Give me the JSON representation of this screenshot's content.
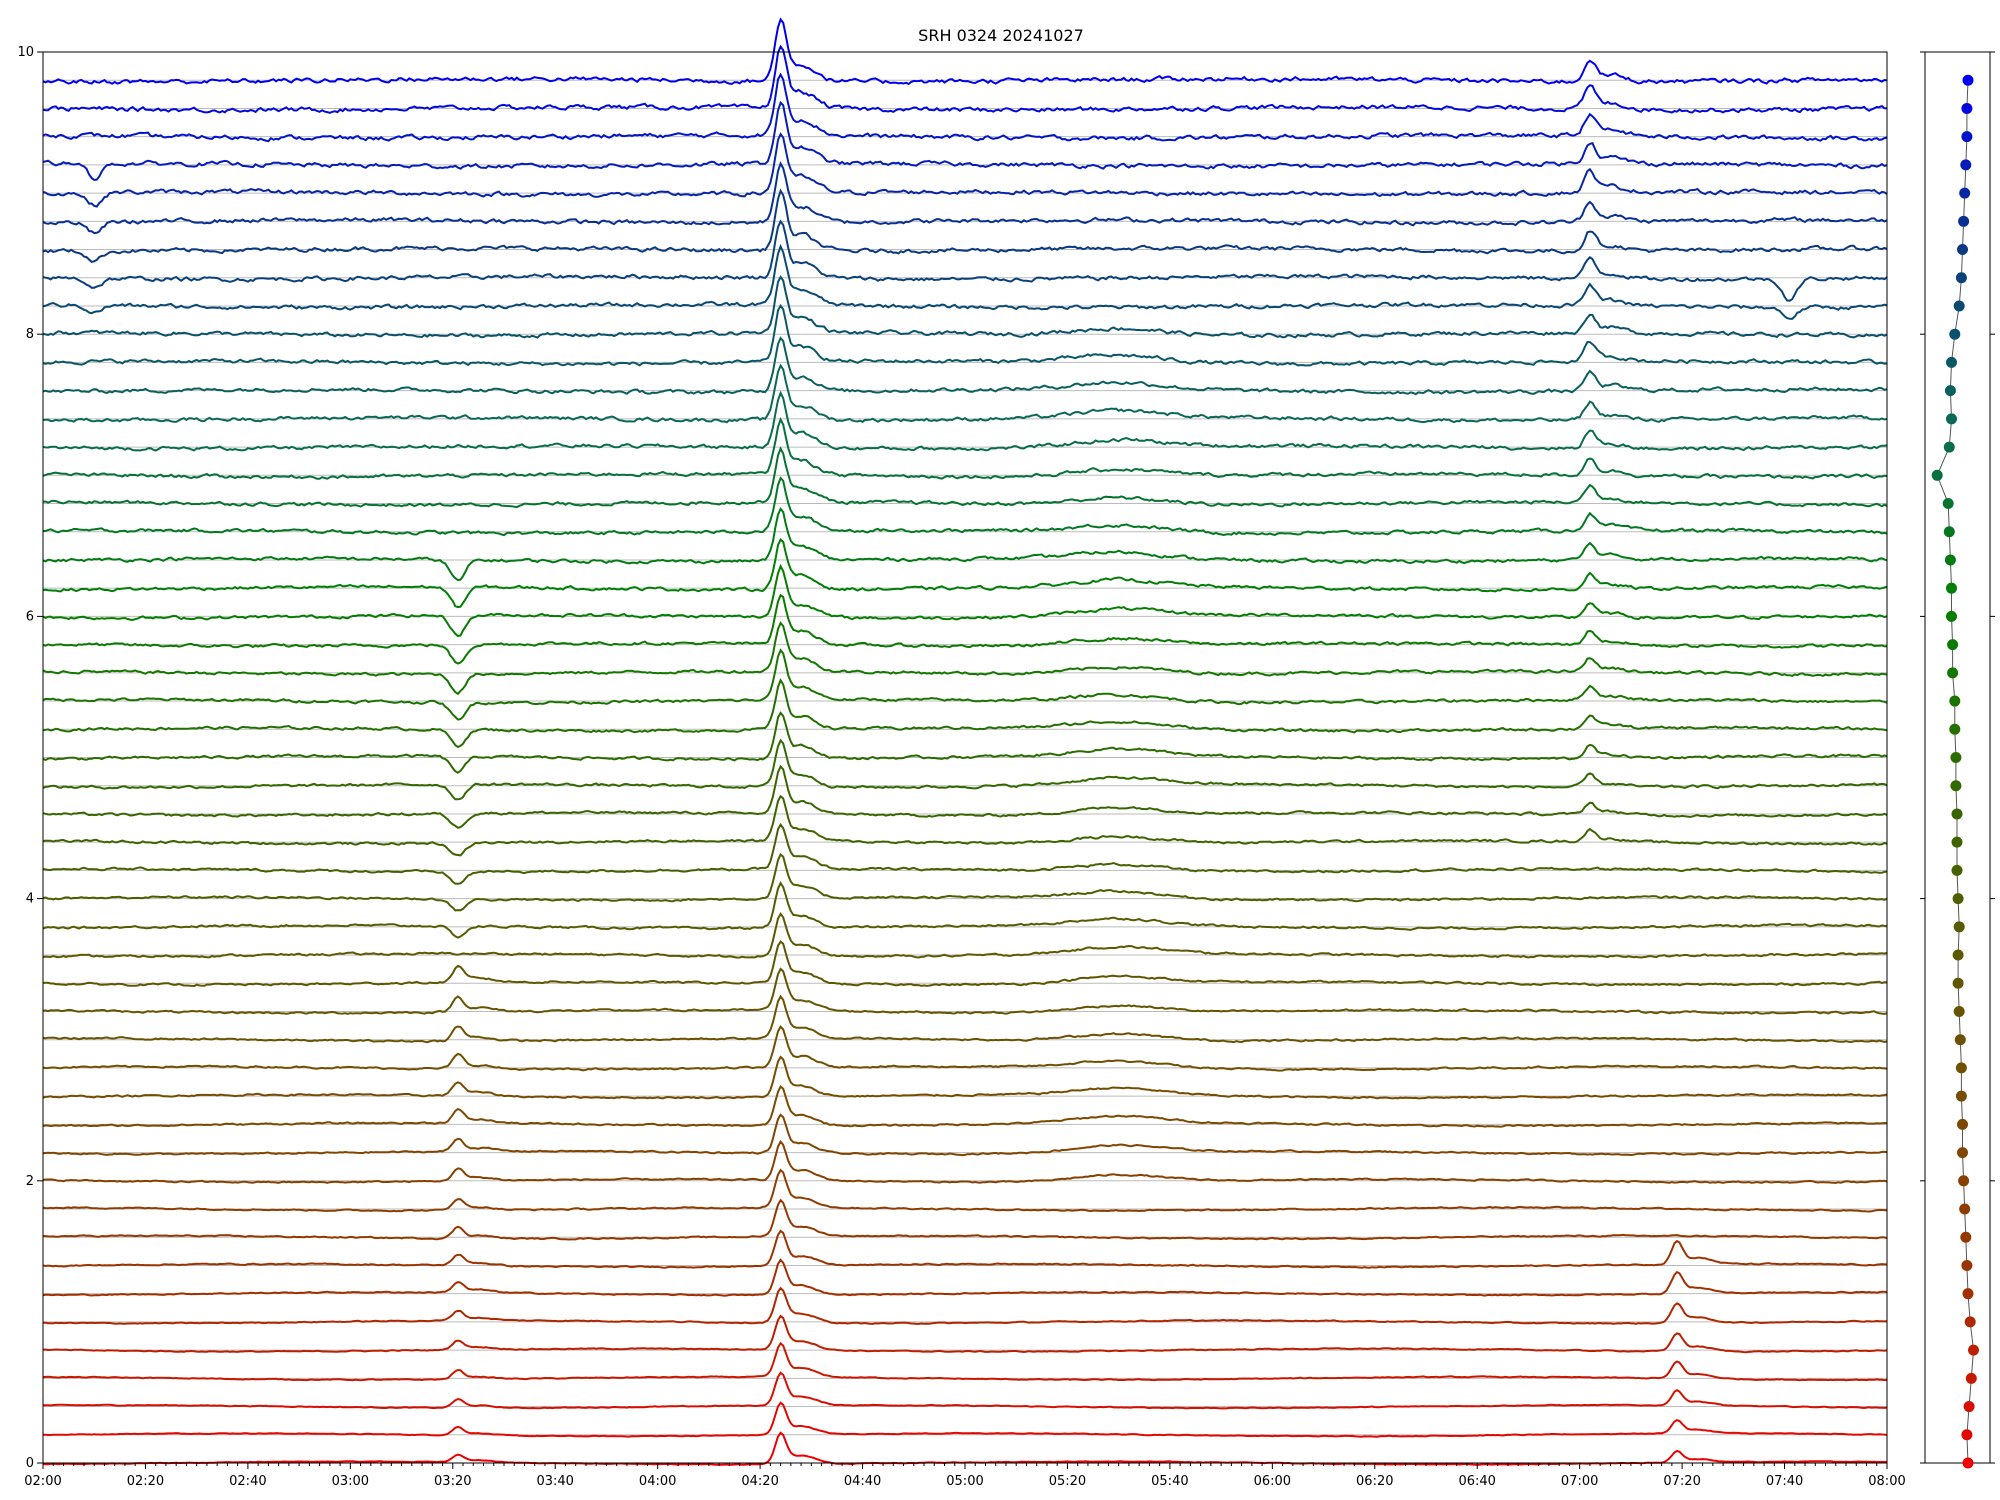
{
  "chart_data": {
    "type": "line",
    "title": "SRH 0324 20241027",
    "xlabel": "",
    "ylabel": "",
    "x_range": [
      "02:00",
      "08:00"
    ],
    "ylim": [
      0,
      10
    ],
    "x_ticks": [
      "02:00",
      "02:20",
      "02:40",
      "03:00",
      "03:20",
      "03:40",
      "04:00",
      "04:20",
      "04:40",
      "05:00",
      "05:20",
      "05:40",
      "06:00",
      "06:20",
      "06:40",
      "07:00",
      "07:20",
      "07:40",
      "08:00"
    ],
    "y_ticks": [
      "0",
      "2",
      "4",
      "6",
      "8",
      "10"
    ],
    "grid": "horizontal lines at each trace baseline",
    "legend": "none",
    "trace_count": 50,
    "trace_spacing": 0.2,
    "color_scale": [
      "#ee0000",
      "#a03000",
      "#7a4a00",
      "#5a5a00",
      "#2e6a00",
      "#008000",
      "#0a6a55",
      "#0a3a80",
      "#0000ee"
    ],
    "events": [
      {
        "time": "02:10",
        "type": "dip",
        "depth": 0.1,
        "trace_from": 41,
        "trace_to": 46
      },
      {
        "time": "03:21",
        "type": "dip",
        "depth": 0.15,
        "trace_from": 19,
        "trace_to": 32
      },
      {
        "time": "03:21",
        "type": "spike",
        "height": 0.1,
        "trace_from": 0,
        "trace_to": 17
      },
      {
        "time": "04:24",
        "type": "spike",
        "height": 0.4,
        "trace_from": 0,
        "trace_to": 49
      },
      {
        "time": "05:30",
        "type": "bump",
        "height": 0.05,
        "trace_from": 10,
        "trace_to": 40
      },
      {
        "time": "07:02",
        "type": "spike",
        "height": 0.15,
        "trace_from": 22,
        "trace_to": 49
      },
      {
        "time": "07:19",
        "type": "spike",
        "height": 0.15,
        "trace_from": 0,
        "trace_to": 7
      },
      {
        "time": "07:41",
        "type": "dip",
        "depth": 0.15,
        "trace_from": 41,
        "trace_to": 42
      }
    ],
    "side_panel": {
      "type": "scatter",
      "point_count": 50,
      "y_from": 0,
      "y_step": 0.2,
      "x_offsets": [
        0.0,
        -0.05,
        0.05,
        0.15,
        0.25,
        0.1,
        0.0,
        -0.05,
        -0.1,
        -0.15,
        -0.2,
        -0.25,
        -0.25,
        -0.3,
        -0.3,
        -0.35,
        -0.4,
        -0.45,
        -0.45,
        -0.4,
        -0.45,
        -0.5,
        -0.5,
        -0.5,
        -0.55,
        -0.55,
        -0.6,
        -0.6,
        -0.7,
        -0.7,
        -0.75,
        -0.75,
        -0.8,
        -0.85,
        -0.9,
        -1.4,
        -0.85,
        -0.75,
        -0.8,
        -0.75,
        -0.6,
        -0.4,
        -0.3,
        -0.25,
        -0.2,
        -0.15,
        -0.1,
        -0.05,
        -0.05,
        0.0
      ]
    }
  }
}
